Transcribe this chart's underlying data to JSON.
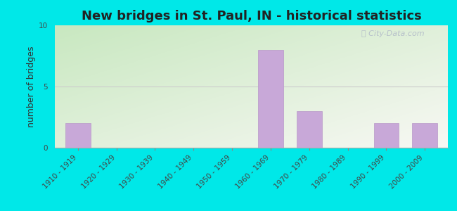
{
  "title": "New bridges in St. Paul, IN - historical statistics",
  "ylabel": "number of bridges",
  "categories": [
    "1910 - 1919",
    "1920 - 1929",
    "1930 - 1939",
    "1940 - 1949",
    "1950 - 1959",
    "1960 - 1969",
    "1970 - 1979",
    "1980 - 1989",
    "1990 - 1999",
    "2000 - 2009"
  ],
  "values": [
    2,
    0,
    0,
    0,
    0,
    8,
    3,
    0,
    2,
    2
  ],
  "bar_color": "#c8a8d8",
  "bar_edgecolor": "#b898c8",
  "ylim": [
    0,
    10
  ],
  "yticks": [
    0,
    5,
    10
  ],
  "bg_outer": "#00e8e8",
  "bg_plot_topleft": "#c8e8c0",
  "bg_plot_bottomright": "#f8f8f4",
  "grid_color": "#cccccc",
  "title_fontsize": 13,
  "label_fontsize": 9,
  "tick_fontsize": 7.5,
  "watermark": "City-Data.com",
  "watermark_color": "#b0b8c8",
  "title_color": "#222222"
}
